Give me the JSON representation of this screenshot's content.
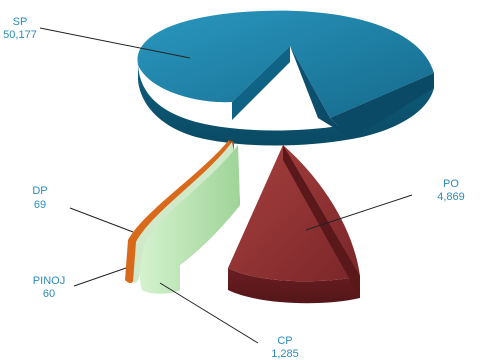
{
  "chart_data": {
    "type": "pie",
    "style": "3d-exploded",
    "slices": [
      {
        "label": "SP",
        "value": 50177,
        "display": "50,177",
        "color": "#1b7fa6"
      },
      {
        "label": "PO",
        "value": 4869,
        "display": "4,869",
        "color": "#8b2f33"
      },
      {
        "label": "CP",
        "value": 1285,
        "display": "1,285",
        "color": "#b7e3b0"
      },
      {
        "label": "PINOJ",
        "value": 60,
        "display": "60",
        "color": "#cfe9c9"
      },
      {
        "label": "DP",
        "value": 69,
        "display": "69",
        "color": "#e0701c"
      }
    ],
    "legend": "none",
    "data_labels": "outside with leader lines"
  }
}
